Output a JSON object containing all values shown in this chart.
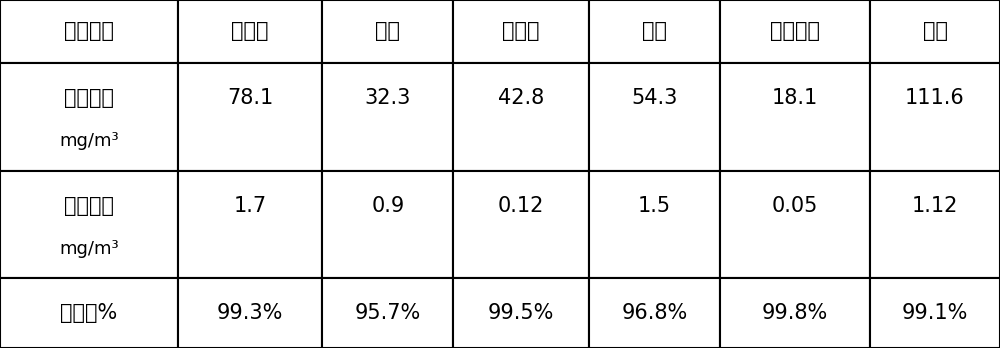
{
  "col_headers": [
    "废气成分",
    "氯化氢",
    "磷酸",
    "重铬酸",
    "醋酸",
    "乙酸乙酯",
    "甲苯"
  ],
  "row1_label_line1": "进口浓度",
  "row1_label_line2": "mg/m³",
  "row1_values": [
    "78.1",
    "32.3",
    "42.8",
    "54.3",
    "18.1",
    "111.6"
  ],
  "row2_label_line1": "出口浓度",
  "row2_label_line2": "mg/m³",
  "row2_values": [
    "1.7",
    "0.9",
    "0.12",
    "1.5",
    "0.05",
    "1.12"
  ],
  "row3_label": "去除率%",
  "row3_values": [
    "99.3%",
    "95.7%",
    "99.5%",
    "96.8%",
    "99.8%",
    "99.1%"
  ],
  "border_color": "#000000",
  "bg_color": "#ffffff",
  "text_color": "#000000",
  "font_size": 15,
  "fig_width": 10.0,
  "fig_height": 3.48
}
